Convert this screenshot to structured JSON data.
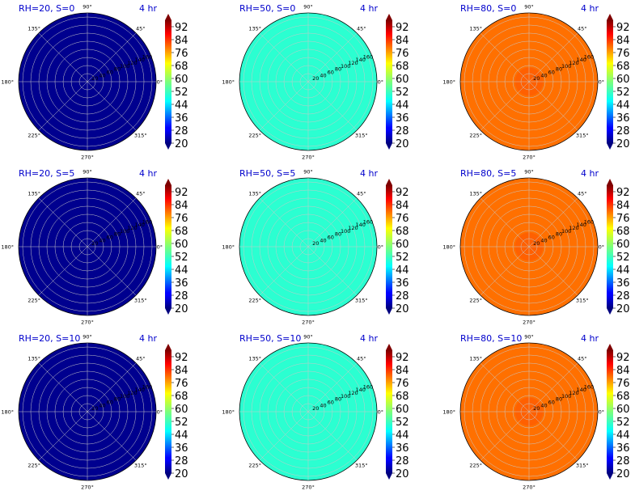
{
  "colors": {
    "cold": "#00008f",
    "mid": "#2bffd1",
    "hot": "#ff7000",
    "hot_center": "#ff6000",
    "axis_text": "#0000cc",
    "grid": "#c8c8c8"
  },
  "colorbar": {
    "ticks": [
      "92",
      "84",
      "76",
      "68",
      "60",
      "52",
      "44",
      "36",
      "28",
      "20"
    ],
    "range": [
      20,
      96
    ]
  },
  "angle_labels": [
    "90°",
    "45°",
    "0°",
    "315°",
    "270°",
    "225°",
    "180°",
    "135°"
  ],
  "radial_labels": [
    "20",
    "40",
    "60",
    "80",
    "100",
    "120",
    "140",
    "160"
  ],
  "chart_data": [
    {
      "type": "heatmap",
      "projection": "polar",
      "title": "RH=20, S=0",
      "time_label": "4 hr",
      "rh": 20,
      "s": 0,
      "value": 20,
      "rlim": [
        0,
        170
      ],
      "grid": true
    },
    {
      "type": "heatmap",
      "projection": "polar",
      "title": "RH=50, S=0",
      "time_label": "4 hr",
      "rh": 50,
      "s": 0,
      "value": 55,
      "rlim": [
        0,
        170
      ],
      "grid": true
    },
    {
      "type": "heatmap",
      "projection": "polar",
      "title": "RH=80, S=0",
      "time_label": "4 hr",
      "rh": 80,
      "s": 0,
      "value": 78,
      "rlim": [
        0,
        170
      ],
      "grid": true
    },
    {
      "type": "heatmap",
      "projection": "polar",
      "title": "RH=20, S=5",
      "time_label": "4 hr",
      "rh": 20,
      "s": 5,
      "value": 20,
      "rlim": [
        0,
        170
      ],
      "grid": true
    },
    {
      "type": "heatmap",
      "projection": "polar",
      "title": "RH=50, S=5",
      "time_label": "4 hr",
      "rh": 50,
      "s": 5,
      "value": 55,
      "rlim": [
        0,
        170
      ],
      "grid": true
    },
    {
      "type": "heatmap",
      "projection": "polar",
      "title": "RH=80, S=5",
      "time_label": "4 hr",
      "rh": 80,
      "s": 5,
      "value": 78,
      "rlim": [
        0,
        170
      ],
      "grid": true
    },
    {
      "type": "heatmap",
      "projection": "polar",
      "title": "RH=20, S=10",
      "time_label": "4 hr",
      "rh": 20,
      "s": 10,
      "value": 20,
      "rlim": [
        0,
        170
      ],
      "grid": true
    },
    {
      "type": "heatmap",
      "projection": "polar",
      "title": "RH=50, S=10",
      "time_label": "4 hr",
      "rh": 50,
      "s": 10,
      "value": 55,
      "rlim": [
        0,
        170
      ],
      "grid": true
    },
    {
      "type": "heatmap",
      "projection": "polar",
      "title": "RH=80, S=10",
      "time_label": "4 hr",
      "rh": 80,
      "s": 10,
      "value": 78,
      "rlim": [
        0,
        170
      ],
      "grid": true
    }
  ]
}
